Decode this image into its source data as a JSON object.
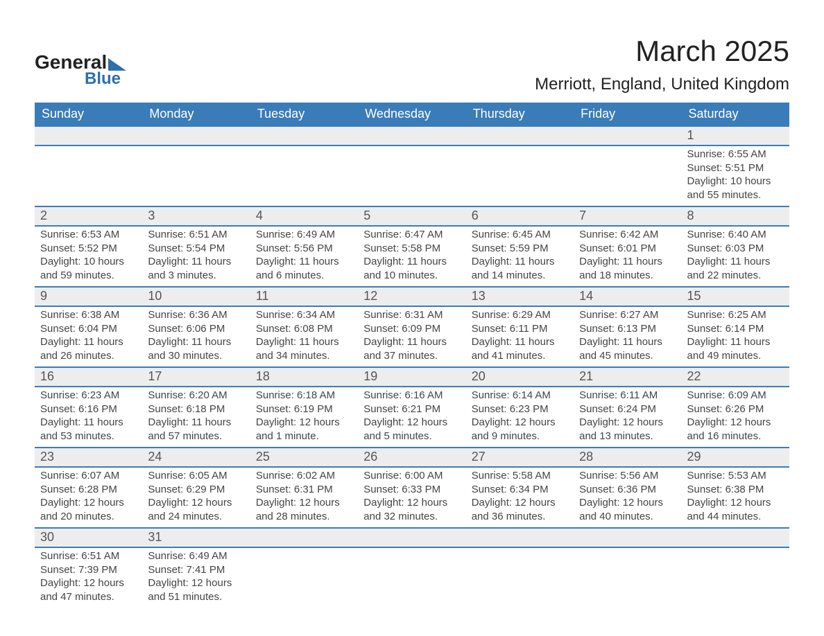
{
  "logo": {
    "text1": "General",
    "text2": "Blue",
    "brand_color": "#2f6fab"
  },
  "title": {
    "month": "March 2025",
    "location": "Merriott, England, United Kingdom"
  },
  "colors": {
    "header_bg": "#3a7cb8",
    "header_text": "#ffffff",
    "daynum_bg": "#ededed",
    "row_divider": "#3a7cb8",
    "text": "#444444"
  },
  "weekdays": [
    "Sunday",
    "Monday",
    "Tuesday",
    "Wednesday",
    "Thursday",
    "Friday",
    "Saturday"
  ],
  "weeks": [
    [
      null,
      null,
      null,
      null,
      null,
      null,
      {
        "day": "1",
        "sunrise": "6:55 AM",
        "sunset": "5:51 PM",
        "daylight": "10 hours and 55 minutes."
      }
    ],
    [
      {
        "day": "2",
        "sunrise": "6:53 AM",
        "sunset": "5:52 PM",
        "daylight": "10 hours and 59 minutes."
      },
      {
        "day": "3",
        "sunrise": "6:51 AM",
        "sunset": "5:54 PM",
        "daylight": "11 hours and 3 minutes."
      },
      {
        "day": "4",
        "sunrise": "6:49 AM",
        "sunset": "5:56 PM",
        "daylight": "11 hours and 6 minutes."
      },
      {
        "day": "5",
        "sunrise": "6:47 AM",
        "sunset": "5:58 PM",
        "daylight": "11 hours and 10 minutes."
      },
      {
        "day": "6",
        "sunrise": "6:45 AM",
        "sunset": "5:59 PM",
        "daylight": "11 hours and 14 minutes."
      },
      {
        "day": "7",
        "sunrise": "6:42 AM",
        "sunset": "6:01 PM",
        "daylight": "11 hours and 18 minutes."
      },
      {
        "day": "8",
        "sunrise": "6:40 AM",
        "sunset": "6:03 PM",
        "daylight": "11 hours and 22 minutes."
      }
    ],
    [
      {
        "day": "9",
        "sunrise": "6:38 AM",
        "sunset": "6:04 PM",
        "daylight": "11 hours and 26 minutes."
      },
      {
        "day": "10",
        "sunrise": "6:36 AM",
        "sunset": "6:06 PM",
        "daylight": "11 hours and 30 minutes."
      },
      {
        "day": "11",
        "sunrise": "6:34 AM",
        "sunset": "6:08 PM",
        "daylight": "11 hours and 34 minutes."
      },
      {
        "day": "12",
        "sunrise": "6:31 AM",
        "sunset": "6:09 PM",
        "daylight": "11 hours and 37 minutes."
      },
      {
        "day": "13",
        "sunrise": "6:29 AM",
        "sunset": "6:11 PM",
        "daylight": "11 hours and 41 minutes."
      },
      {
        "day": "14",
        "sunrise": "6:27 AM",
        "sunset": "6:13 PM",
        "daylight": "11 hours and 45 minutes."
      },
      {
        "day": "15",
        "sunrise": "6:25 AM",
        "sunset": "6:14 PM",
        "daylight": "11 hours and 49 minutes."
      }
    ],
    [
      {
        "day": "16",
        "sunrise": "6:23 AM",
        "sunset": "6:16 PM",
        "daylight": "11 hours and 53 minutes."
      },
      {
        "day": "17",
        "sunrise": "6:20 AM",
        "sunset": "6:18 PM",
        "daylight": "11 hours and 57 minutes."
      },
      {
        "day": "18",
        "sunrise": "6:18 AM",
        "sunset": "6:19 PM",
        "daylight": "12 hours and 1 minute."
      },
      {
        "day": "19",
        "sunrise": "6:16 AM",
        "sunset": "6:21 PM",
        "daylight": "12 hours and 5 minutes."
      },
      {
        "day": "20",
        "sunrise": "6:14 AM",
        "sunset": "6:23 PM",
        "daylight": "12 hours and 9 minutes."
      },
      {
        "day": "21",
        "sunrise": "6:11 AM",
        "sunset": "6:24 PM",
        "daylight": "12 hours and 13 minutes."
      },
      {
        "day": "22",
        "sunrise": "6:09 AM",
        "sunset": "6:26 PM",
        "daylight": "12 hours and 16 minutes."
      }
    ],
    [
      {
        "day": "23",
        "sunrise": "6:07 AM",
        "sunset": "6:28 PM",
        "daylight": "12 hours and 20 minutes."
      },
      {
        "day": "24",
        "sunrise": "6:05 AM",
        "sunset": "6:29 PM",
        "daylight": "12 hours and 24 minutes."
      },
      {
        "day": "25",
        "sunrise": "6:02 AM",
        "sunset": "6:31 PM",
        "daylight": "12 hours and 28 minutes."
      },
      {
        "day": "26",
        "sunrise": "6:00 AM",
        "sunset": "6:33 PM",
        "daylight": "12 hours and 32 minutes."
      },
      {
        "day": "27",
        "sunrise": "5:58 AM",
        "sunset": "6:34 PM",
        "daylight": "12 hours and 36 minutes."
      },
      {
        "day": "28",
        "sunrise": "5:56 AM",
        "sunset": "6:36 PM",
        "daylight": "12 hours and 40 minutes."
      },
      {
        "day": "29",
        "sunrise": "5:53 AM",
        "sunset": "6:38 PM",
        "daylight": "12 hours and 44 minutes."
      }
    ],
    [
      {
        "day": "30",
        "sunrise": "6:51 AM",
        "sunset": "7:39 PM",
        "daylight": "12 hours and 47 minutes."
      },
      {
        "day": "31",
        "sunrise": "6:49 AM",
        "sunset": "7:41 PM",
        "daylight": "12 hours and 51 minutes."
      },
      null,
      null,
      null,
      null,
      null
    ]
  ],
  "labels": {
    "sunrise": "Sunrise: ",
    "sunset": "Sunset: ",
    "daylight": "Daylight: "
  }
}
